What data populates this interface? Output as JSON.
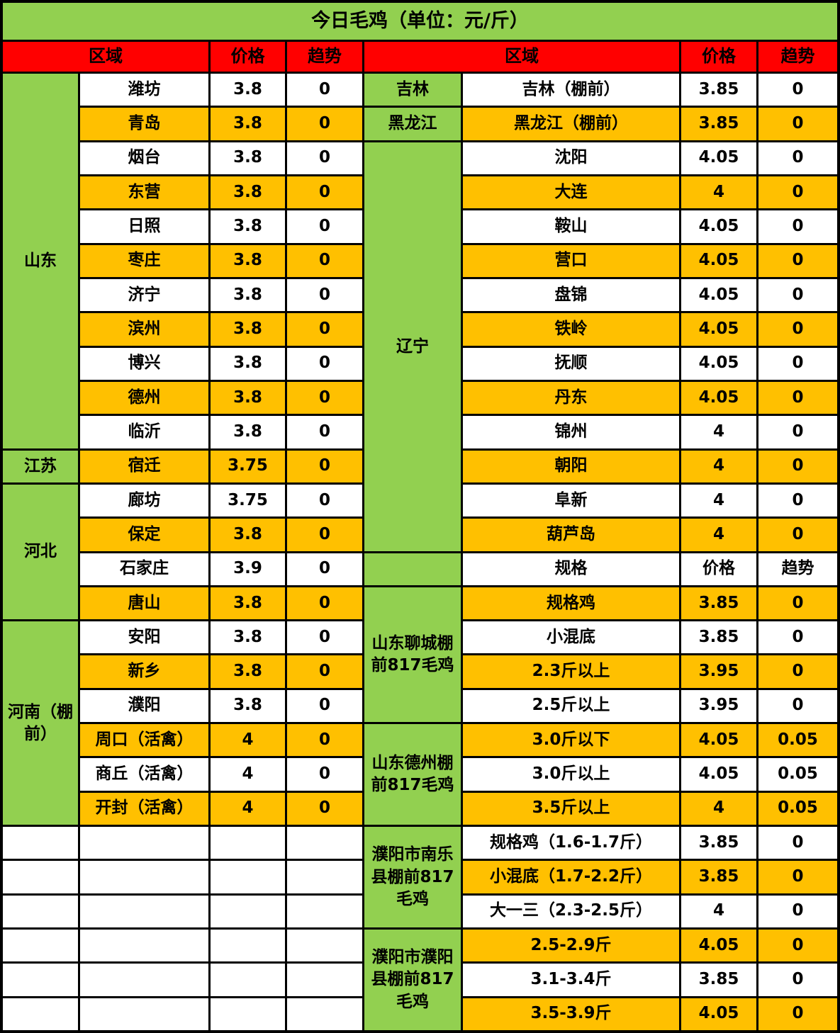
{
  "title": "今日毛鸡（单位：元/斤）",
  "header": {
    "region": "区域",
    "price": "价格",
    "trend": "趋势"
  },
  "colors": {
    "title_green": "#92D050",
    "header_red": "#FF0000",
    "row_orange": "#FFC000",
    "row_white": "#FFFFFF",
    "border": "#000000",
    "text": "#000000"
  },
  "left": {
    "groups": [
      {
        "region": "山东",
        "rows": [
          [
            "潍坊",
            "3.8",
            "0"
          ],
          [
            "青岛",
            "3.8",
            "0"
          ],
          [
            "烟台",
            "3.8",
            "0"
          ],
          [
            "东营",
            "3.8",
            "0"
          ],
          [
            "日照",
            "3.8",
            "0"
          ],
          [
            "枣庄",
            "3.8",
            "0"
          ],
          [
            "济宁",
            "3.8",
            "0"
          ],
          [
            "滨州",
            "3.8",
            "0"
          ],
          [
            "博兴",
            "3.8",
            "0"
          ],
          [
            "德州",
            "3.8",
            "0"
          ],
          [
            "临沂",
            "3.8",
            "0"
          ]
        ]
      },
      {
        "region": "江苏",
        "rows": [
          [
            "宿迁",
            "3.75",
            "0"
          ]
        ]
      },
      {
        "region": "河北",
        "rows": [
          [
            "廊坊",
            "3.75",
            "0"
          ],
          [
            "保定",
            "3.8",
            "0"
          ],
          [
            "石家庄",
            "3.9",
            "0"
          ],
          [
            "唐山",
            "3.8",
            "0"
          ]
        ]
      },
      {
        "region": "河南（棚前）",
        "rows": [
          [
            "安阳",
            "3.8",
            "0"
          ],
          [
            "新乡",
            "3.8",
            "0"
          ],
          [
            "濮阳",
            "3.8",
            "0"
          ],
          [
            "周口（活禽）",
            "4",
            "0"
          ],
          [
            "商丘（活禽）",
            "4",
            "0"
          ],
          [
            "开封（活禽）",
            "4",
            "0"
          ]
        ]
      }
    ],
    "empty_rows": 6
  },
  "right": {
    "groups": [
      {
        "region": "吉林",
        "rows": [
          [
            "吉林（棚前）",
            "3.85",
            "0"
          ]
        ]
      },
      {
        "region": "黑龙江",
        "rows": [
          [
            "黑龙江（棚前）",
            "3.85",
            "0"
          ]
        ]
      },
      {
        "region": "辽宁",
        "rows": [
          [
            "沈阳",
            "4.05",
            "0"
          ],
          [
            "大连",
            "4",
            "0"
          ],
          [
            "鞍山",
            "4.05",
            "0"
          ],
          [
            "营口",
            "4.05",
            "0"
          ],
          [
            "盘锦",
            "4.05",
            "0"
          ],
          [
            "铁岭",
            "4.05",
            "0"
          ],
          [
            "抚顺",
            "4.05",
            "0"
          ],
          [
            "丹东",
            "4.05",
            "0"
          ],
          [
            "锦州",
            "4",
            "0"
          ],
          [
            "朝阳",
            "4",
            "0"
          ],
          [
            "阜新",
            "4",
            "0"
          ],
          [
            "葫芦岛",
            "4",
            "0"
          ]
        ]
      },
      {
        "subheader": true,
        "region": "",
        "cells": [
          "规格",
          "价格",
          "趋势"
        ]
      },
      {
        "region": "山东聊城棚前817毛鸡",
        "rows": [
          [
            "规格鸡",
            "3.85",
            "0"
          ],
          [
            "小混底",
            "3.85",
            "0"
          ],
          [
            "2.3斤以上",
            "3.95",
            "0"
          ],
          [
            "2.5斤以上",
            "3.95",
            "0"
          ]
        ]
      },
      {
        "region": "山东德州棚前817毛鸡",
        "rows": [
          [
            "3.0斤以下",
            "4.05",
            "0.05"
          ],
          [
            "3.0斤以上",
            "4.05",
            "0.05"
          ],
          [
            "3.5斤以上",
            "4",
            "0.05"
          ]
        ]
      },
      {
        "region": "濮阳市南乐县棚前817毛鸡",
        "rows": [
          [
            "规格鸡（1.6-1.7斤）",
            "3.85",
            "0"
          ],
          [
            "小混底（1.7-2.2斤）",
            "3.85",
            "0"
          ],
          [
            "大一三（2.3-2.5斤）",
            "4",
            "0"
          ]
        ]
      },
      {
        "region": "濮阳市濮阳县棚前817毛鸡",
        "rows": [
          [
            "2.5-2.9斤",
            "4.05",
            "0"
          ],
          [
            "3.1-3.4斤",
            "3.85",
            "0"
          ],
          [
            "3.5-3.9斤",
            "4.05",
            "0"
          ]
        ]
      }
    ]
  }
}
